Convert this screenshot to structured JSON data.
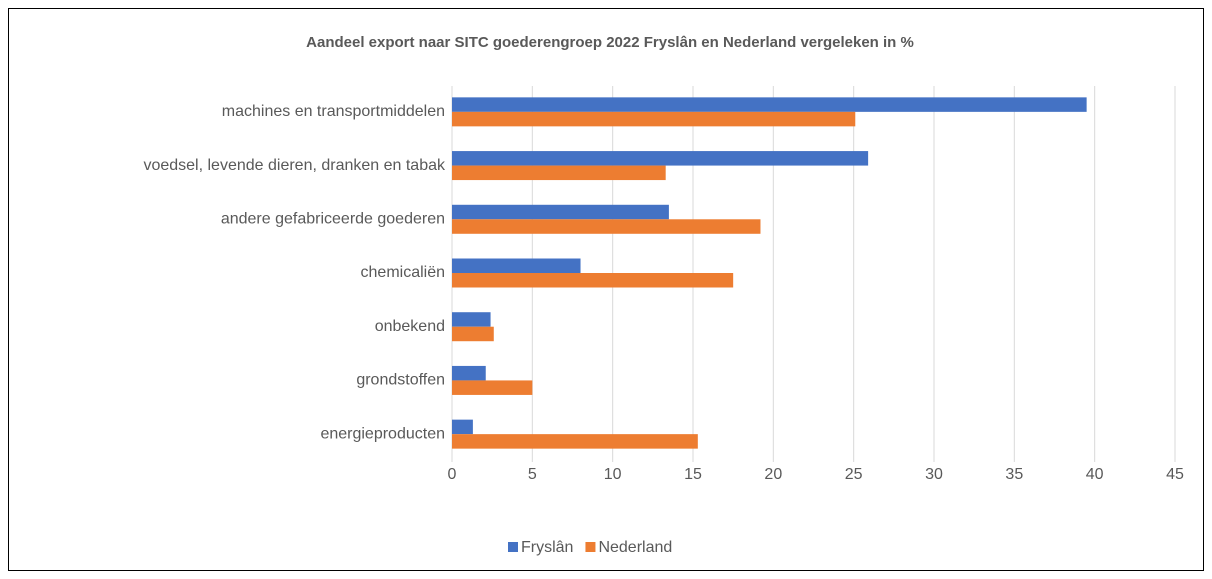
{
  "chart_data": {
    "type": "bar",
    "orientation": "horizontal",
    "title": "Aandeel export naar SITC goederengroep 2022 Fryslân en Nederland vergeleken in %",
    "categories": [
      "machines en transportmiddelen",
      "voedsel, levende dieren, dranken en tabak",
      "andere gefabriceerde goederen",
      "chemicaliën",
      "onbekend",
      "grondstoffen",
      "energieproducten"
    ],
    "series": [
      {
        "name": "Fryslân",
        "color": "#4472c4",
        "values": [
          39.5,
          25.9,
          13.5,
          8.0,
          2.4,
          2.1,
          1.3
        ]
      },
      {
        "name": "Nederland",
        "color": "#ed7d31",
        "values": [
          25.1,
          13.3,
          19.2,
          17.5,
          2.6,
          5.0,
          15.3
        ]
      }
    ],
    "xlim": [
      0,
      45
    ],
    "xticks": [
      0,
      5,
      10,
      15,
      20,
      25,
      30,
      35,
      40,
      45
    ],
    "grid": true,
    "legend": "bottom"
  }
}
